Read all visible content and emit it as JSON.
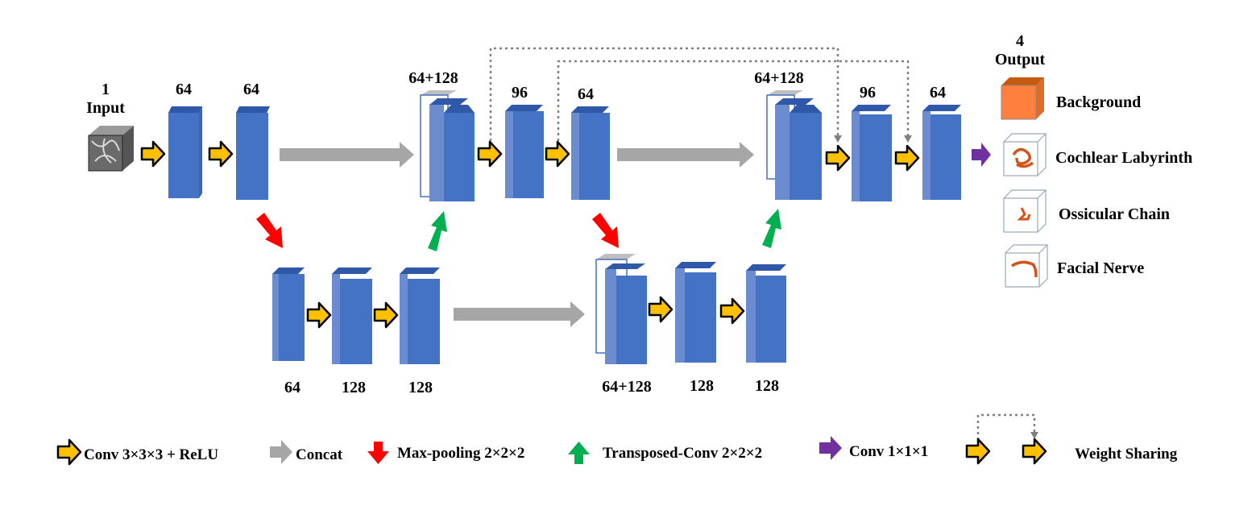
{
  "input": {
    "channels": "1",
    "label": "Input"
  },
  "encoder_top": [
    "64",
    "64"
  ],
  "encoder_bottom": [
    "64",
    "128",
    "128"
  ],
  "bottleneck_up": [
    "64+128",
    "128",
    "128"
  ],
  "decoder_mid": [
    "64+128",
    "96",
    "64"
  ],
  "decoder_top": [
    "64+128",
    "96",
    "64"
  ],
  "output": {
    "channels": "4",
    "label": "Output",
    "classes": [
      {
        "name": "Background",
        "icon": "background-cube-icon"
      },
      {
        "name": "Cochlear Labyrinth",
        "icon": "cochlea-cube-icon"
      },
      {
        "name": "Ossicular Chain",
        "icon": "ossicle-cube-icon"
      },
      {
        "name": "Facial Nerve",
        "icon": "facial-nerve-cube-icon"
      }
    ]
  },
  "legend": {
    "conv": "Conv 3×3×3 + ReLU",
    "concat": "Concat",
    "maxpool": "Max-pooling 2×2×2",
    "transposed": "Transposed-Conv 2×2×2",
    "conv1": "Conv 1×1×1",
    "weight_sharing": "Weight Sharing"
  },
  "colors": {
    "block_front": "#4472C4",
    "block_side": "#6B8DD0",
    "block_top": "#2F58A8",
    "conv_arrow": "#FFC000",
    "concat_arrow": "#A6A6A6",
    "maxpool_arrow": "#FF0000",
    "transposed_arrow": "#00B050",
    "conv1_arrow": "#7030A0",
    "background_class": "#FF7F3F"
  }
}
